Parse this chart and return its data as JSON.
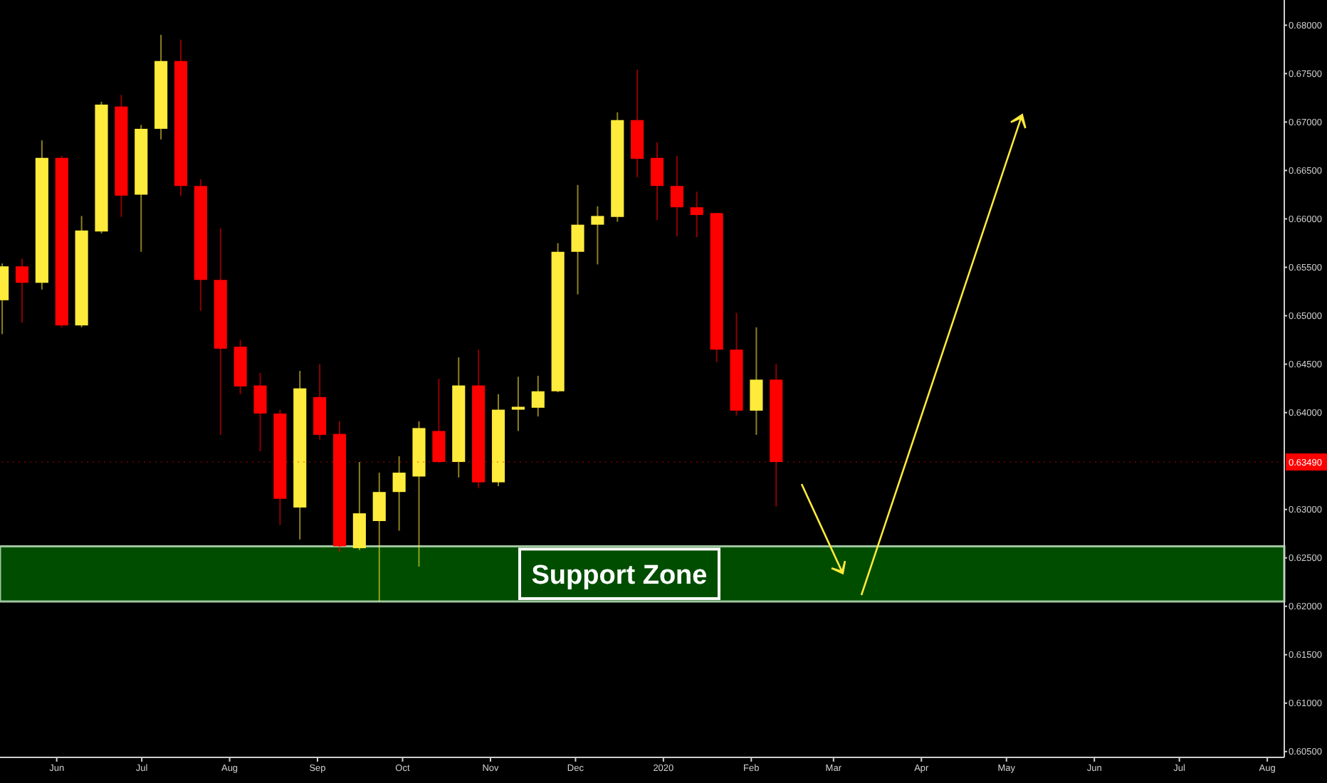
{
  "chart_data": {
    "type": "candlestick",
    "x": [
      "2019-05-13",
      "2019-05-20",
      "2019-05-27",
      "2019-06-03",
      "2019-06-10",
      "2019-06-17",
      "2019-06-24",
      "2019-07-01",
      "2019-07-08",
      "2019-07-15",
      "2019-07-22",
      "2019-07-29",
      "2019-08-05",
      "2019-08-12",
      "2019-08-19",
      "2019-08-26",
      "2019-09-02",
      "2019-09-09",
      "2019-09-16",
      "2019-09-23",
      "2019-09-30",
      "2019-10-07",
      "2019-10-14",
      "2019-10-21",
      "2019-10-28",
      "2019-11-04",
      "2019-11-11",
      "2019-11-18",
      "2019-11-25",
      "2019-12-02",
      "2019-12-09",
      "2019-12-16",
      "2019-12-23",
      "2019-12-30",
      "2020-01-06",
      "2020-01-13",
      "2020-01-20",
      "2020-01-27",
      "2020-02-03",
      "2020-02-10"
    ],
    "ohlc": [
      [
        0.6516,
        0.6554,
        0.6481,
        0.6551
      ],
      [
        0.6551,
        0.6559,
        0.6493,
        0.6534
      ],
      [
        0.6534,
        0.6681,
        0.6527,
        0.6663
      ],
      [
        0.6663,
        0.6665,
        0.6488,
        0.649
      ],
      [
        0.649,
        0.6603,
        0.6488,
        0.6588
      ],
      [
        0.6587,
        0.6721,
        0.6585,
        0.6718
      ],
      [
        0.6716,
        0.6728,
        0.6602,
        0.6624
      ],
      [
        0.6625,
        0.6697,
        0.6566,
        0.6693
      ],
      [
        0.6693,
        0.679,
        0.6682,
        0.6763
      ],
      [
        0.6763,
        0.6785,
        0.6624,
        0.6634
      ],
      [
        0.6634,
        0.6641,
        0.6505,
        0.6537
      ],
      [
        0.6537,
        0.659,
        0.6377,
        0.6466
      ],
      [
        0.6468,
        0.6475,
        0.6419,
        0.6427
      ],
      [
        0.6428,
        0.6441,
        0.636,
        0.6399
      ],
      [
        0.6399,
        0.6403,
        0.6284,
        0.6311
      ],
      [
        0.6302,
        0.6443,
        0.6269,
        0.6425
      ],
      [
        0.6416,
        0.645,
        0.6372,
        0.6377
      ],
      [
        0.6378,
        0.6391,
        0.6256,
        0.6262
      ],
      [
        0.626,
        0.6349,
        0.6258,
        0.6296
      ],
      [
        0.6288,
        0.6338,
        0.6205,
        0.6318
      ],
      [
        0.6318,
        0.6355,
        0.6278,
        0.6338
      ],
      [
        0.6334,
        0.6391,
        0.6241,
        0.6384
      ],
      [
        0.6381,
        0.6435,
        0.6348,
        0.6349
      ],
      [
        0.6349,
        0.6457,
        0.6333,
        0.6428
      ],
      [
        0.6428,
        0.6465,
        0.6322,
        0.6328
      ],
      [
        0.6328,
        0.6419,
        0.6324,
        0.6403
      ],
      [
        0.6403,
        0.6437,
        0.6381,
        0.6406
      ],
      [
        0.6405,
        0.6438,
        0.6396,
        0.6422
      ],
      [
        0.6422,
        0.6575,
        0.6421,
        0.6566
      ],
      [
        0.6566,
        0.6635,
        0.6522,
        0.6594
      ],
      [
        0.6594,
        0.6613,
        0.6553,
        0.6603
      ],
      [
        0.6602,
        0.671,
        0.6597,
        0.6702
      ],
      [
        0.6702,
        0.6754,
        0.6643,
        0.6662
      ],
      [
        0.6663,
        0.6679,
        0.6599,
        0.6634
      ],
      [
        0.6634,
        0.6665,
        0.6582,
        0.6612
      ],
      [
        0.6612,
        0.6628,
        0.6581,
        0.6604
      ],
      [
        0.6606,
        0.6606,
        0.6452,
        0.6465
      ],
      [
        0.6465,
        0.6503,
        0.6397,
        0.6402
      ],
      [
        0.6402,
        0.6488,
        0.6377,
        0.6434
      ],
      [
        0.6434,
        0.645,
        0.6303,
        0.6349
      ]
    ],
    "colors": [
      "#ffeb3b",
      "#ff0000",
      "#ffeb3b",
      "#ff0000",
      "#ffeb3b",
      "#ffeb3b",
      "#ff0000",
      "#ffeb3b",
      "#ffeb3b",
      "#ff0000",
      "#ff0000",
      "#ff0000",
      "#ff0000",
      "#ff0000",
      "#ff0000",
      "#ffeb3b",
      "#ff0000",
      "#ff0000",
      "#ffeb3b",
      "#ffeb3b",
      "#ffeb3b",
      "#ffeb3b",
      "#ff0000",
      "#ffeb3b",
      "#ff0000",
      "#ffeb3b",
      "#ffeb3b",
      "#ffeb3b",
      "#ffeb3b",
      "#ffeb3b",
      "#ffeb3b",
      "#ffeb3b",
      "#ff0000",
      "#ff0000",
      "#ff0000",
      "#ff0000",
      "#ff0000",
      "#ff0000",
      "#ffeb3b",
      "#ff0000"
    ],
    "xlim": [
      "2019-05-12",
      "2020-08-07"
    ],
    "xticks": [
      {
        "value": "2019-06-01",
        "label": "Jun"
      },
      {
        "value": "2019-07-01",
        "label": "Jul"
      },
      {
        "value": "2019-08-01",
        "label": "Aug"
      },
      {
        "value": "2019-09-01",
        "label": "Sep"
      },
      {
        "value": "2019-10-01",
        "label": "Oct"
      },
      {
        "value": "2019-11-01",
        "label": "Nov"
      },
      {
        "value": "2019-12-01",
        "label": "Dec"
      },
      {
        "value": "2020-01-01",
        "label": "2020"
      },
      {
        "value": "2020-02-01",
        "label": "Feb"
      },
      {
        "value": "2020-03-01",
        "label": "Mar"
      },
      {
        "value": "2020-04-01",
        "label": "Apr"
      },
      {
        "value": "2020-05-01",
        "label": "May"
      },
      {
        "value": "2020-06-01",
        "label": "Jun"
      },
      {
        "value": "2020-07-01",
        "label": "Jul"
      },
      {
        "value": "2020-08-01",
        "label": "Aug"
      }
    ],
    "ylim": [
      0.6044,
      0.6826
    ],
    "yticks": [
      {
        "value": 0.605,
        "label": "0.60500"
      },
      {
        "value": 0.61,
        "label": "0.61000"
      },
      {
        "value": 0.615,
        "label": "0.61500"
      },
      {
        "value": 0.62,
        "label": "0.62000"
      },
      {
        "value": 0.625,
        "label": "0.62500"
      },
      {
        "value": 0.63,
        "label": "0.63000"
      },
      {
        "value": 0.64,
        "label": "0.64000"
      },
      {
        "value": 0.645,
        "label": "0.64500"
      },
      {
        "value": 0.65,
        "label": "0.65000"
      },
      {
        "value": 0.655,
        "label": "0.65500"
      },
      {
        "value": 0.66,
        "label": "0.66000"
      },
      {
        "value": 0.665,
        "label": "0.66500"
      },
      {
        "value": 0.67,
        "label": "0.67000"
      },
      {
        "value": 0.675,
        "label": "0.67500"
      },
      {
        "value": 0.68,
        "label": "0.68000"
      }
    ],
    "ref_lines": [
      {
        "axis": "y",
        "value": 0.6349,
        "label": "0.63490",
        "color": "#ff0000"
      }
    ],
    "bands": [
      {
        "axis": "y",
        "from": 0.6205,
        "to": 0.6262,
        "label": "Support Zone",
        "color": "#004d00"
      }
    ]
  }
}
